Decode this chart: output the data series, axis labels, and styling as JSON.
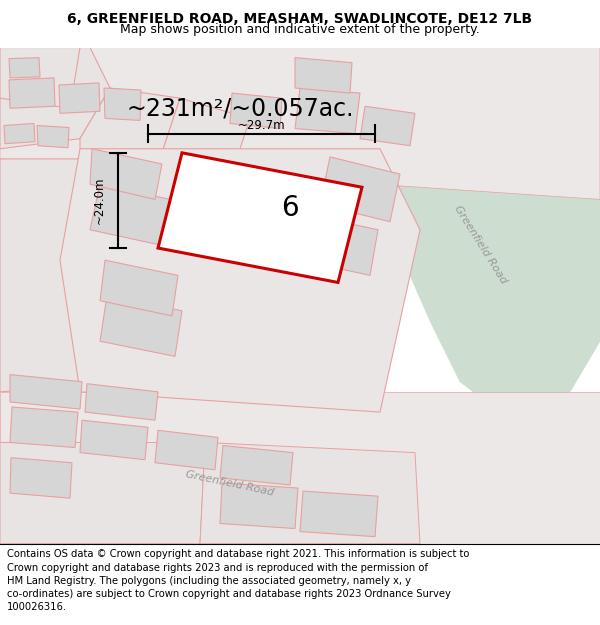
{
  "title": "6, GREENFIELD ROAD, MEASHAM, SWADLINCOTE, DE12 7LB",
  "subtitle": "Map shows position and indicative extent of the property.",
  "footer": "Contains OS data © Crown copyright and database right 2021. This information is subject to\nCrown copyright and database rights 2023 and is reproduced with the permission of\nHM Land Registry. The polygons (including the associated geometry, namely x, y\nco-ordinates) are subject to Crown copyright and database rights 2023 Ordnance Survey\n100026316.",
  "area_label": "~231m²/~0.057ac.",
  "property_number": "6",
  "dim_width": "~29.7m",
  "dim_height": "~24.0m",
  "road_label_1": "Greenfield Road",
  "road_label_2": "Greenfield Road",
  "bg_color": "#f2eded",
  "plot_fill_color": "#ffffff",
  "plot_edge_color": "#cc0000",
  "road_green_color": "#cdddd0",
  "building_fill": "#d6d6d6",
  "parcel_fill": "#e8e4e4",
  "outline_color": "#e8a0a0",
  "title_fontsize": 10,
  "subtitle_fontsize": 9,
  "footer_fontsize": 7.2,
  "area_fontsize": 17,
  "number_fontsize": 20,
  "dim_fontsize": 8.5,
  "road_fontsize": 8
}
